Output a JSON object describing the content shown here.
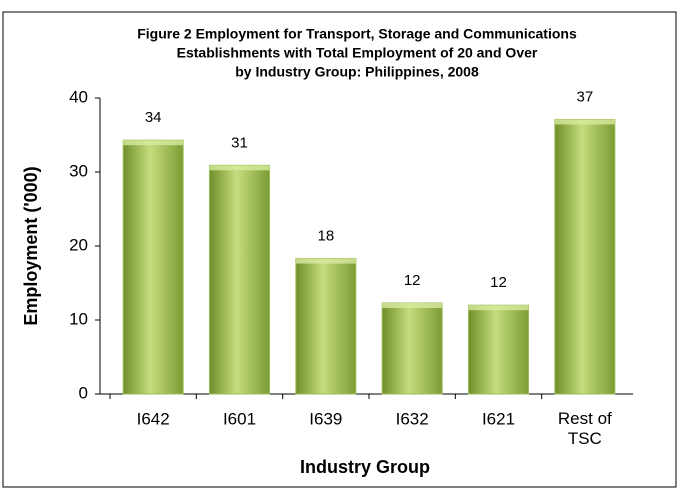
{
  "chart_data": {
    "type": "bar",
    "title": [
      "Figure 2  Employment for Transport, Storage and Communications",
      "Establishments with Total Employment of 20 and Over",
      "by Industry Group: Philippines, 2008"
    ],
    "x_label": "Industry Group",
    "y_label": "Employment ('000)",
    "categories": [
      "I642",
      "I601",
      "I639",
      "I632",
      "I621",
      "Rest of TSC"
    ],
    "values": [
      34.3,
      30.9,
      18.3,
      12.3,
      12.0,
      37.1
    ],
    "value_labels": [
      "34",
      "31",
      "18",
      "12",
      "12",
      "37"
    ],
    "color": "#9bbb59",
    "ylim": [
      0,
      40
    ],
    "yticks": [
      0,
      10,
      20,
      30,
      40
    ],
    "grid": false
  }
}
